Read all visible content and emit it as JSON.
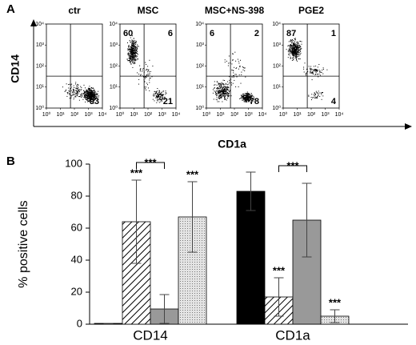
{
  "chart_data": [
    {
      "type": "scatter",
      "label": "A",
      "xlabel": "CD1a",
      "ylabel": "CD14",
      "log_scale": true,
      "xlim": [
        1,
        10000
      ],
      "ylim": [
        1,
        10000
      ],
      "xticks": [
        {
          "value": 1,
          "label": "10⁰"
        },
        {
          "value": 10,
          "label": "10¹"
        },
        {
          "value": 100,
          "label": "10²"
        },
        {
          "value": 1000,
          "label": "10³"
        },
        {
          "value": 10000,
          "label": "10⁴"
        }
      ],
      "yticks": [
        {
          "value": 1,
          "label": "10⁰"
        },
        {
          "value": 10,
          "label": "10¹"
        },
        {
          "value": 100,
          "label": "10²"
        },
        {
          "value": 1000,
          "label": "10³"
        },
        {
          "value": 10000,
          "label": "10⁴"
        }
      ],
      "panels": [
        {
          "title": "ctr",
          "quadrants": [
            null,
            null,
            null,
            93
          ]
        },
        {
          "title": "MSC",
          "quadrants": [
            60,
            6,
            null,
            21
          ]
        },
        {
          "title": "MSC+NS-398",
          "quadrants": [
            6,
            2,
            null,
            78
          ]
        },
        {
          "title": "PGE2",
          "quadrants": [
            87,
            1,
            null,
            4
          ]
        }
      ]
    },
    {
      "type": "bar",
      "label": "B",
      "ylabel": "% positive cells",
      "categories": [
        "CD14",
        "CD1a"
      ],
      "ylim": [
        0,
        100
      ],
      "yticks": [
        0,
        20,
        40,
        60,
        80,
        100
      ],
      "series": [
        {
          "color": "#000000",
          "pattern": "solid",
          "values": [
            0.5,
            83
          ],
          "errors": [
            0,
            12
          ],
          "stars": [
            null,
            null
          ]
        },
        {
          "color": "#000000",
          "pattern": "hatch",
          "values": [
            64,
            17
          ],
          "errors": [
            26,
            12
          ],
          "stars": [
            "***",
            "***"
          ]
        },
        {
          "color": "#999999",
          "pattern": "solid",
          "values": [
            9.5,
            65
          ],
          "errors": [
            9,
            23
          ],
          "stars": [
            null,
            null
          ]
        },
        {
          "color": "#bbbbbb",
          "pattern": "dots",
          "values": [
            67,
            5
          ],
          "errors": [
            22,
            4
          ],
          "stars": [
            "***",
            "***"
          ]
        }
      ],
      "comparisons": [
        "***",
        "***"
      ]
    }
  ]
}
